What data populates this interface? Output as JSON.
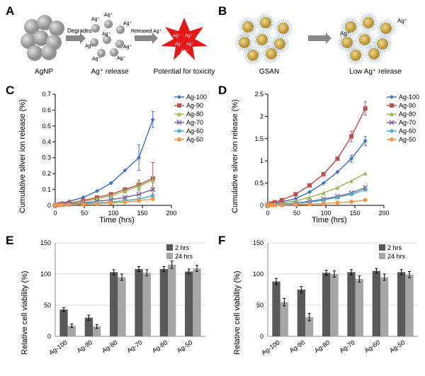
{
  "panel_labels": {
    "A": "A",
    "B": "B",
    "C": "C",
    "D": "D",
    "E": "E",
    "F": "F"
  },
  "panelA": {
    "labels": {
      "agnp": "AgNP",
      "release": "Ag⁺ release",
      "toxicity": "Potential for toxicity",
      "degrades": "Degrades",
      "released": "Released Ag⁺"
    },
    "colors": {
      "np": "#b3b3b3",
      "ion": "#808080",
      "star": "#e61717"
    }
  },
  "panelB": {
    "labels": {
      "gsan": "GSAN",
      "low": "Low Ag⁺ release"
    },
    "colors": {
      "core": "#d4a843",
      "shell": "#b0c8e8"
    }
  },
  "line_colors": {
    "Ag-100": "#4472c4",
    "Ag-90": "#c0504d",
    "Ag-80": "#9bbb59",
    "Ag-70": "#8064a2",
    "Ag-60": "#4bacc6",
    "Ag-50": "#f79646"
  },
  "markers": {
    "Ag-100": "diamond",
    "Ag-90": "square",
    "Ag-80": "triangle",
    "Ag-70": "x",
    "Ag-60": "star",
    "Ag-50": "circle"
  },
  "panelC": {
    "ylabel": "Cumulative silver ion release (%)",
    "xlabel": "Time (hrs)",
    "xlim": [
      0,
      200
    ],
    "ylim": [
      0,
      0.7
    ],
    "xticks": [
      0,
      50,
      100,
      150,
      200
    ],
    "yticks": [
      0,
      0.1,
      0.2,
      0.3,
      0.4,
      0.5,
      0.6,
      0.7
    ],
    "series": {
      "Ag-100": [
        [
          0,
          0
        ],
        [
          6,
          0.01
        ],
        [
          12,
          0.015
        ],
        [
          24,
          0.025
        ],
        [
          48,
          0.05
        ],
        [
          72,
          0.09
        ],
        [
          96,
          0.14
        ],
        [
          120,
          0.22
        ],
        [
          144,
          0.3
        ],
        [
          168,
          0.54
        ]
      ],
      "Ag-90": [
        [
          0,
          0
        ],
        [
          6,
          0.005
        ],
        [
          12,
          0.01
        ],
        [
          24,
          0.015
        ],
        [
          48,
          0.03
        ],
        [
          72,
          0.05
        ],
        [
          96,
          0.07
        ],
        [
          120,
          0.1
        ],
        [
          144,
          0.13
        ],
        [
          168,
          0.17
        ]
      ],
      "Ag-80": [
        [
          0,
          0
        ],
        [
          6,
          0.005
        ],
        [
          12,
          0.008
        ],
        [
          24,
          0.012
        ],
        [
          48,
          0.025
        ],
        [
          72,
          0.04
        ],
        [
          96,
          0.06
        ],
        [
          120,
          0.09
        ],
        [
          144,
          0.12
        ],
        [
          168,
          0.16
        ]
      ],
      "Ag-70": [
        [
          0,
          0
        ],
        [
          6,
          0.003
        ],
        [
          12,
          0.005
        ],
        [
          24,
          0.008
        ],
        [
          48,
          0.015
        ],
        [
          72,
          0.025
        ],
        [
          96,
          0.035
        ],
        [
          120,
          0.05
        ],
        [
          144,
          0.07
        ],
        [
          168,
          0.1
        ]
      ],
      "Ag-60": [
        [
          0,
          0
        ],
        [
          6,
          0.002
        ],
        [
          12,
          0.003
        ],
        [
          24,
          0.005
        ],
        [
          48,
          0.01
        ],
        [
          72,
          0.015
        ],
        [
          96,
          0.02
        ],
        [
          120,
          0.03
        ],
        [
          144,
          0.04
        ],
        [
          168,
          0.06
        ]
      ],
      "Ag-50": [
        [
          0,
          0
        ],
        [
          6,
          0.001
        ],
        [
          12,
          0.002
        ],
        [
          24,
          0.003
        ],
        [
          48,
          0.006
        ],
        [
          72,
          0.01
        ],
        [
          96,
          0.015
        ],
        [
          120,
          0.02
        ],
        [
          144,
          0.03
        ],
        [
          168,
          0.04
        ]
      ]
    },
    "errors": {
      "Ag-100": {
        "144": 0.08,
        "168": 0.05
      },
      "Ag-90": {
        "144": 0.03,
        "168": 0.1
      },
      "Ag-80": {
        "144": 0.03,
        "168": 0.02
      }
    },
    "legend_items": [
      "Ag-100",
      "Ag-90",
      "Ag-80",
      "Ag-70",
      "Ag-60",
      "Ag-50"
    ]
  },
  "panelD": {
    "ylabel": "Cumulative silver ion release (%)",
    "xlabel": "Time (hrs)",
    "xlim": [
      0,
      200
    ],
    "ylim": [
      0,
      2.5
    ],
    "xticks": [
      0,
      50,
      100,
      150,
      200
    ],
    "yticks": [
      0,
      0.5,
      1,
      1.5,
      2,
      2.5
    ],
    "series": {
      "Ag-100": [
        [
          0,
          0
        ],
        [
          6,
          0.03
        ],
        [
          12,
          0.05
        ],
        [
          24,
          0.08
        ],
        [
          48,
          0.15
        ],
        [
          72,
          0.3
        ],
        [
          96,
          0.5
        ],
        [
          120,
          0.75
        ],
        [
          144,
          1.05
        ],
        [
          168,
          1.45
        ]
      ],
      "Ag-90": [
        [
          0,
          0
        ],
        [
          6,
          0.04
        ],
        [
          12,
          0.07
        ],
        [
          24,
          0.12
        ],
        [
          48,
          0.25
        ],
        [
          72,
          0.45
        ],
        [
          96,
          0.7
        ],
        [
          120,
          1.05
        ],
        [
          144,
          1.55
        ],
        [
          168,
          2.18
        ]
      ],
      "Ag-80": [
        [
          0,
          0
        ],
        [
          6,
          0.02
        ],
        [
          12,
          0.03
        ],
        [
          24,
          0.05
        ],
        [
          48,
          0.1
        ],
        [
          72,
          0.18
        ],
        [
          96,
          0.28
        ],
        [
          120,
          0.4
        ],
        [
          144,
          0.55
        ],
        [
          168,
          0.72
        ]
      ],
      "Ag-70": [
        [
          0,
          0
        ],
        [
          6,
          0.01
        ],
        [
          12,
          0.015
        ],
        [
          24,
          0.025
        ],
        [
          48,
          0.05
        ],
        [
          72,
          0.09
        ],
        [
          96,
          0.14
        ],
        [
          120,
          0.2
        ],
        [
          144,
          0.28
        ],
        [
          168,
          0.4
        ]
      ],
      "Ag-60": [
        [
          0,
          0
        ],
        [
          6,
          0.008
        ],
        [
          12,
          0.012
        ],
        [
          24,
          0.02
        ],
        [
          48,
          0.04
        ],
        [
          72,
          0.07
        ],
        [
          96,
          0.12
        ],
        [
          120,
          0.18
        ],
        [
          144,
          0.25
        ],
        [
          168,
          0.35
        ]
      ],
      "Ag-50": [
        [
          0,
          0
        ],
        [
          6,
          0.003
        ],
        [
          12,
          0.005
        ],
        [
          24,
          0.008
        ],
        [
          48,
          0.015
        ],
        [
          72,
          0.025
        ],
        [
          96,
          0.04
        ],
        [
          120,
          0.06
        ],
        [
          144,
          0.08
        ],
        [
          168,
          0.12
        ]
      ]
    },
    "errors": {
      "Ag-90": {
        "144": 0.12,
        "168": 0.15
      },
      "Ag-100": {
        "144": 0.08,
        "168": 0.1
      }
    },
    "legend_items": [
      "Ag-100",
      "Ag-90",
      "Ag-80",
      "Ag-70",
      "Ag-60",
      "Ag-50"
    ]
  },
  "panelE": {
    "ylabel": "Relative cell viability (%)",
    "categories": [
      "Ag-100",
      "Ag-90",
      "Ag-80",
      "Ag-70",
      "Ag-60",
      "Ag-50"
    ],
    "ylim": [
      0,
      150
    ],
    "yticks": [
      0,
      50,
      100,
      150
    ],
    "series": {
      "2 hrs": [
        43,
        30,
        103,
        108,
        108,
        104
      ],
      "24 hrs": [
        17,
        16,
        95,
        102,
        115,
        109
      ]
    },
    "errors": {
      "2 hrs": [
        3,
        4,
        4,
        4,
        4,
        4
      ],
      "24 hrs": [
        3,
        3,
        5,
        5,
        6,
        5
      ]
    },
    "bar_colors": {
      "2 hrs": "#595959",
      "24 hrs": "#a6a6a6"
    },
    "legend_items": [
      "2 hrs",
      "24 hrs"
    ]
  },
  "panelF": {
    "ylabel": "Relative cell viability (%)",
    "categories": [
      "Ag-100",
      "Ag-90",
      "Ag-80",
      "Ag-70",
      "Ag-60",
      "Ag-50"
    ],
    "ylim": [
      0,
      150
    ],
    "yticks": [
      0,
      50,
      100,
      150
    ],
    "series": {
      "2 hrs": [
        88,
        75,
        102,
        103,
        105,
        103
      ],
      "24 hrs": [
        55,
        31,
        100,
        92,
        95,
        99
      ]
    },
    "errors": {
      "2 hrs": [
        5,
        5,
        4,
        4,
        4,
        4
      ],
      "24 hrs": [
        6,
        6,
        5,
        5,
        5,
        5
      ]
    },
    "bar_colors": {
      "2 hrs": "#595959",
      "24 hrs": "#a6a6a6"
    },
    "legend_items": [
      "2 hrs",
      "24 hrs"
    ]
  }
}
